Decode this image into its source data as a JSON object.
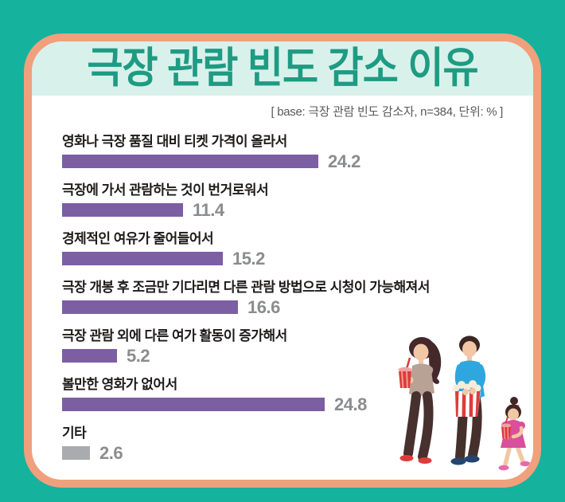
{
  "header": {
    "title": "극장 관람 빈도 감소 이유",
    "base_note": "[ base: 극장 관람 빈도 감소자, n=384, 단위: % ]"
  },
  "chart_data": {
    "type": "bar",
    "orientation": "horizontal",
    "title": "극장 관람 빈도 감소 이유",
    "base": "극장 관람 빈도 감소자",
    "n": 384,
    "unit": "%",
    "categories": [
      "영화나 극장 품질 대비 티켓 가격이 올라서",
      "극장에 가서 관람하는 것이 번거로워서",
      "경제적인 여유가 줄어들어서",
      "극장 개봉 후 조금만 기다리면 다른 관람 방법으로 시청이 가능해져서",
      "극장 관람 외에 다른 여가 활동이 증가해서",
      "볼만한 영화가 없어서",
      "기타"
    ],
    "values": [
      24.2,
      11.4,
      15.2,
      16.6,
      5.2,
      24.8,
      2.6
    ],
    "bar_colors": [
      "#7c5ea3",
      "#7c5ea3",
      "#7c5ea3",
      "#7c5ea3",
      "#7c5ea3",
      "#7c5ea3",
      "#a9abae"
    ],
    "xlim": [
      0,
      24.8
    ],
    "value_labels_shown": true,
    "grid": false,
    "legend": false
  },
  "colors": {
    "page_background": "#15b29d",
    "card_border": "#f0a07c",
    "card_background": "#ffffff",
    "header_background": "#d9f1eb",
    "title_text": "#1e9b83",
    "label_text": "#1e1b1a",
    "value_text": "#8a8c8e",
    "note_text": "#58595b",
    "bar_primary": "#7c5ea3",
    "bar_other": "#a9abae"
  },
  "illustration": {
    "name": "family-with-popcorn-and-drinks",
    "description": "woman holding a soda cup, man in blue shirt holding a striped popcorn box, little girl in pink dress holding a soda cup"
  }
}
